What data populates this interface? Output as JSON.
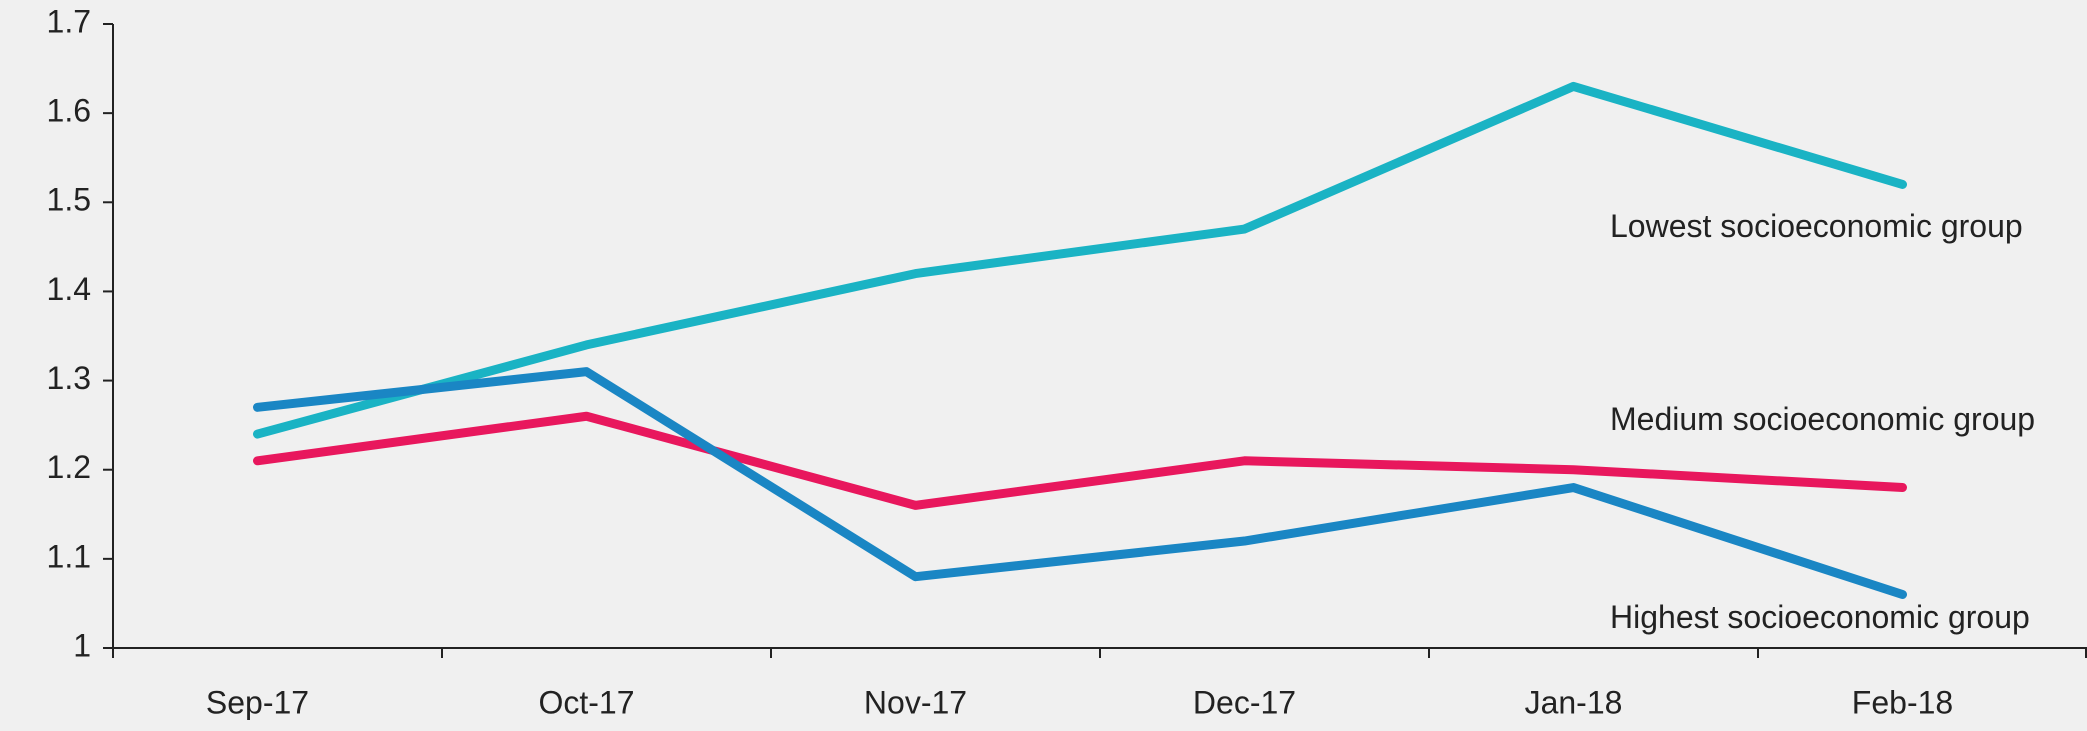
{
  "chart_data": {
    "type": "line",
    "categories": [
      "Sep-17",
      "Oct-17",
      "Nov-17",
      "Dec-17",
      "Jan-18",
      "Feb-18"
    ],
    "series": [
      {
        "name": "Lowest socioeconomic group",
        "color": "#1ab3c4",
        "values": [
          1.24,
          1.34,
          1.42,
          1.47,
          1.63,
          1.52
        ]
      },
      {
        "name": "Medium socioeconomic group",
        "color": "#e8175d",
        "values": [
          1.21,
          1.26,
          1.16,
          1.21,
          1.2,
          1.18
        ]
      },
      {
        "name": "Highest socioeconomic group",
        "color": "#1a86c4",
        "values": [
          1.27,
          1.31,
          1.08,
          1.12,
          1.18,
          1.06
        ]
      }
    ],
    "ylim": [
      1,
      1.7
    ],
    "yticks": [
      1,
      1.1,
      1.2,
      1.3,
      1.4,
      1.5,
      1.6,
      1.7
    ],
    "grid": false
  }
}
